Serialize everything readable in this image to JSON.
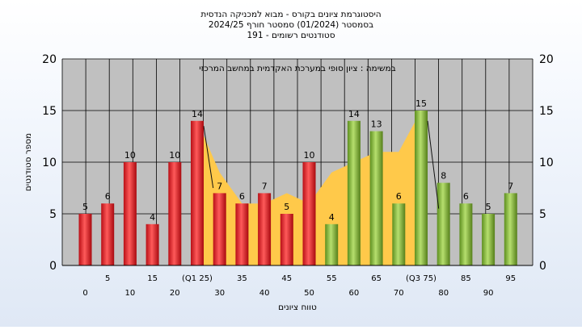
{
  "chart_data": {
    "type": "bar",
    "title_lines": [
      "היסטוגרמת ציונים בקורס - מבוא למכניקה הנדסית",
      "בסמסטר  (01/2024)  סמסטר חורף  2024/25",
      "סטודנטים רשומים - 191"
    ],
    "plot_title": "במשימה : ציון סופי במערכת האקדמית במחשב המרכזי",
    "xlabel": "טווח ציונים",
    "ylabel": "מספר סטודנטים",
    "ylim": [
      0,
      20
    ],
    "yticks": [
      0,
      5,
      10,
      15,
      20
    ],
    "grid": true,
    "categories": [
      "0",
      "5",
      "10",
      "15",
      "20",
      "(Q1 25)",
      "30",
      "35",
      "40",
      "45",
      "50",
      "55",
      "60",
      "65",
      "70",
      "(Q3 75)",
      "80",
      "85",
      "90",
      "95"
    ],
    "values": [
      5,
      6,
      10,
      4,
      10,
      14,
      7,
      6,
      7,
      5,
      10,
      4,
      14,
      13,
      6,
      15,
      8,
      6,
      5,
      7
    ],
    "bar_colors": [
      "red",
      "red",
      "red",
      "red",
      "red",
      "red",
      "red",
      "red",
      "red",
      "red",
      "red",
      "green",
      "green",
      "green",
      "green",
      "green",
      "green",
      "green",
      "green",
      "green"
    ],
    "area_series": {
      "x": [
        "(Q1 25)",
        "30",
        "35",
        "40",
        "45",
        "50",
        "55",
        "60",
        "65",
        "70",
        "(Q3 75)"
      ],
      "values": [
        14,
        9,
        6,
        6,
        7,
        6,
        9,
        10,
        11,
        11,
        15
      ]
    },
    "colors": {
      "red_bar": "#e8333a",
      "green_bar": "#8fc24a",
      "area": "#ffc94a",
      "plot_bg": "#c0c0c0",
      "grid": "#000000"
    }
  }
}
